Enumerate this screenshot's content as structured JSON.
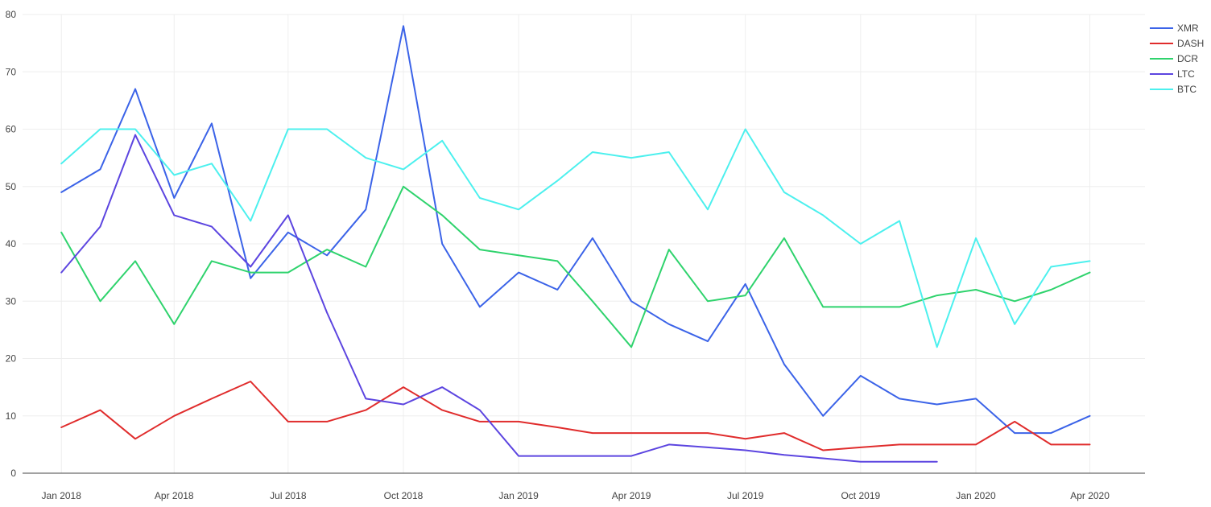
{
  "chart_data": {
    "type": "line",
    "title": "",
    "xlabel": "",
    "ylabel": "",
    "ylim": [
      0,
      80
    ],
    "xlim": [
      "2017-12-01",
      "2020-05-15"
    ],
    "grid": true,
    "legend_position": "top-right",
    "y_ticks": [
      0,
      10,
      20,
      30,
      40,
      50,
      60,
      70,
      80
    ],
    "x_ticks": [
      {
        "date": "2018-01-01",
        "label": "Jan 2018"
      },
      {
        "date": "2018-04-01",
        "label": "Apr 2018"
      },
      {
        "date": "2018-07-01",
        "label": "Jul 2018"
      },
      {
        "date": "2018-10-01",
        "label": "Oct 2018"
      },
      {
        "date": "2019-01-01",
        "label": "Jan 2019"
      },
      {
        "date": "2019-04-01",
        "label": "Apr 2019"
      },
      {
        "date": "2019-07-01",
        "label": "Jul 2019"
      },
      {
        "date": "2019-10-01",
        "label": "Oct 2019"
      },
      {
        "date": "2020-01-01",
        "label": "Jan 2020"
      },
      {
        "date": "2020-04-01",
        "label": "Apr 2020"
      }
    ],
    "x": [
      "2018-01-01",
      "2018-02-01",
      "2018-03-01",
      "2018-04-01",
      "2018-05-01",
      "2018-06-01",
      "2018-07-01",
      "2018-08-01",
      "2018-09-01",
      "2018-10-01",
      "2018-11-01",
      "2018-12-01",
      "2019-01-01",
      "2019-02-01",
      "2019-03-01",
      "2019-04-01",
      "2019-05-01",
      "2019-06-01",
      "2019-07-01",
      "2019-08-01",
      "2019-09-01",
      "2019-10-01",
      "2019-11-01",
      "2019-12-01",
      "2020-01-01",
      "2020-02-01",
      "2020-03-01",
      "2020-04-01"
    ],
    "series": [
      {
        "name": "XMR",
        "color": "#3b63e8",
        "values": [
          49,
          53,
          67,
          48,
          61,
          34,
          42,
          38,
          46,
          78,
          40,
          29,
          35,
          32,
          41,
          30,
          26,
          23,
          33,
          19,
          10,
          17,
          13,
          12,
          13,
          7,
          7,
          10
        ]
      },
      {
        "name": "DASH",
        "color": "#e02c2c",
        "values": [
          8,
          11,
          6,
          10,
          13,
          16,
          9,
          9,
          11,
          15,
          11,
          9,
          9,
          8,
          7,
          7,
          7,
          7,
          6,
          7,
          4,
          4.5,
          5,
          5,
          5,
          9,
          5,
          5
        ]
      },
      {
        "name": "DCR",
        "color": "#2fd36d",
        "values": [
          42,
          30,
          37,
          26,
          37,
          35,
          35,
          39,
          36,
          50,
          45,
          39,
          38,
          37,
          30,
          22,
          39,
          30,
          31,
          41,
          29,
          29,
          29,
          31,
          32,
          30,
          32,
          35
        ]
      },
      {
        "name": "LTC",
        "color": "#5c45e0",
        "values": [
          35,
          43,
          59,
          45,
          43,
          36,
          45,
          28,
          13,
          12,
          15,
          11,
          3,
          3,
          3,
          3,
          5,
          4.5,
          4,
          3.2,
          2.6,
          2,
          2,
          2,
          null,
          null,
          null,
          null
        ]
      },
      {
        "name": "BTC",
        "color": "#4cf0ee",
        "values": [
          54,
          60,
          60,
          52,
          54,
          44,
          60,
          60,
          55,
          53,
          58,
          48,
          46,
          51,
          56,
          55,
          56,
          46,
          60,
          49,
          45,
          40,
          44,
          22,
          41,
          26,
          36,
          37
        ]
      }
    ]
  }
}
